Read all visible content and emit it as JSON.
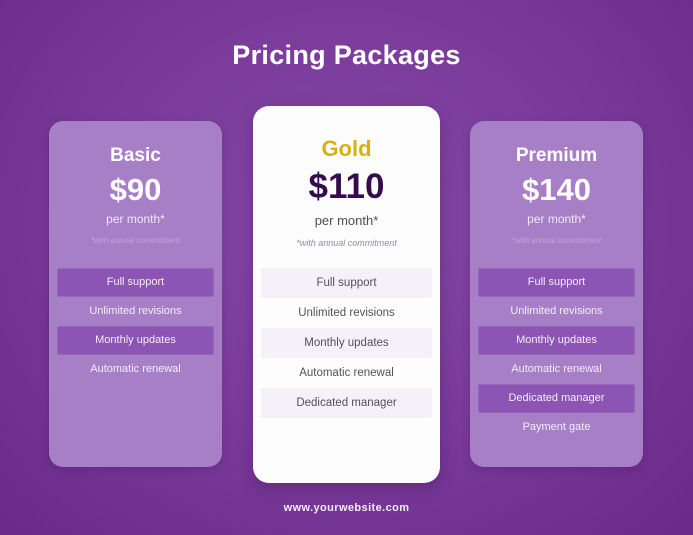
{
  "page": {
    "title": "Pricing Packages",
    "footer_url": "www.yourwebsite.com"
  },
  "colors": {
    "background_center": "#8449a4",
    "background_edge": "#6a2a8a",
    "side_card_bg": "#a77fc7",
    "side_row_bg": "#8c54b3",
    "featured_card_bg": "#fdfdfe",
    "featured_row_bg": "#f5f0fa",
    "gold_accent": "#d8b010",
    "featured_price_color": "#350c4d",
    "white_text": "#ffffff"
  },
  "plans": [
    {
      "name": "Basic",
      "price": "$90",
      "period": "per month*",
      "note": "*with annual commitment",
      "featured": false,
      "features": [
        "Full support",
        "Unlimited revisions",
        "Monthly updates",
        "Automatic renewal"
      ]
    },
    {
      "name": "Gold",
      "price": "$110",
      "period": "per month*",
      "note": "*with annual commitment",
      "featured": true,
      "features": [
        "Full support",
        "Unlimited revisions",
        "Monthly updates",
        "Automatic renewal",
        "Dedicated manager"
      ]
    },
    {
      "name": "Premium",
      "price": "$140",
      "period": "per month*",
      "note": "*with annual commitment",
      "featured": false,
      "features": [
        "Full support",
        "Unlimited revisions",
        "Monthly updates",
        "Automatic renewal",
        "Dedicated manager",
        "Payment gate"
      ]
    }
  ]
}
